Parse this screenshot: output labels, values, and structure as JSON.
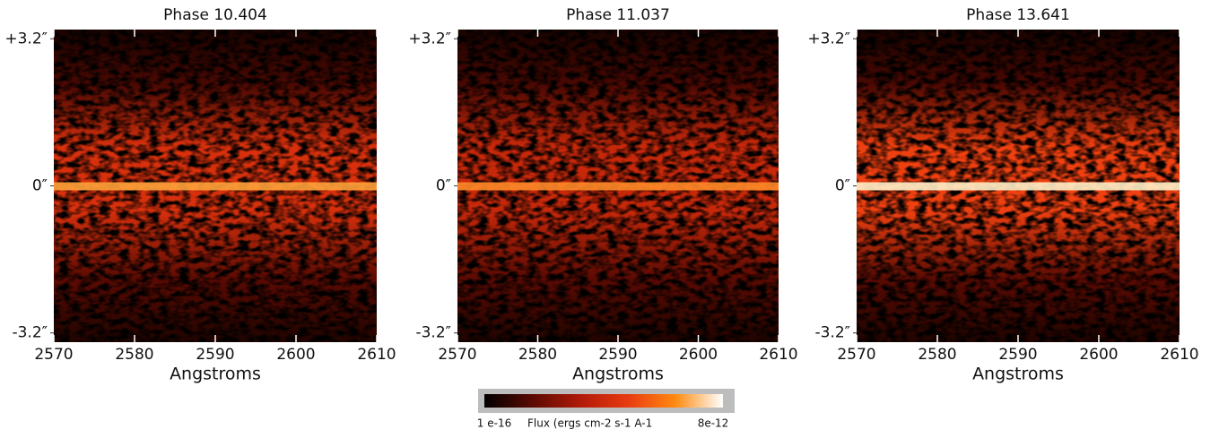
{
  "chart_data": [
    {
      "type": "spectral-image",
      "title": "Phase 10.404",
      "xlabel": "Angstroms",
      "xlim": [
        2570,
        2610
      ],
      "xticks": [
        2570,
        2580,
        2590,
        2600,
        2610
      ],
      "ylim": [
        -3.4,
        3.4
      ],
      "yticks": [
        {
          "value": 3.2,
          "label": "+3.2″"
        },
        {
          "value": 0,
          "label": "0″"
        },
        {
          "value": -3.2,
          "label": "-3.2″"
        }
      ],
      "color": "#d8300c",
      "core_color": "#ffa23a"
    },
    {
      "type": "spectral-image",
      "title": "Phase 11.037",
      "xlabel": "Angstroms",
      "xlim": [
        2570,
        2610
      ],
      "xticks": [
        2570,
        2580,
        2590,
        2600,
        2610
      ],
      "ylim": [
        -3.4,
        3.4
      ],
      "yticks": [
        {
          "value": 3.2,
          "label": "+3.2″"
        },
        {
          "value": 0,
          "label": "0″"
        },
        {
          "value": -3.2,
          "label": "-3.2″"
        }
      ],
      "color": "#c8280a",
      "core_color": "#ff8a28"
    },
    {
      "type": "spectral-image",
      "title": "Phase 13.641",
      "xlabel": "Angstroms",
      "xlim": [
        2570,
        2610
      ],
      "xticks": [
        2570,
        2580,
        2590,
        2600,
        2610
      ],
      "ylim": [
        -3.4,
        3.4
      ],
      "yticks": [
        {
          "value": 3.2,
          "label": "+3.2″"
        },
        {
          "value": 0,
          "label": "0″"
        },
        {
          "value": -3.2,
          "label": "-3.2″"
        }
      ],
      "color": "#f04010",
      "core_color": "#fff0c8"
    }
  ],
  "colorbar": {
    "min_label": "1 e-16",
    "max_label": "8e-12",
    "label": "Flux (ergs cm-2 s-1 A-1",
    "colors": [
      "#000000",
      "#5a0a02",
      "#b01a08",
      "#e83a10",
      "#ff8a10",
      "#ffffff"
    ]
  }
}
